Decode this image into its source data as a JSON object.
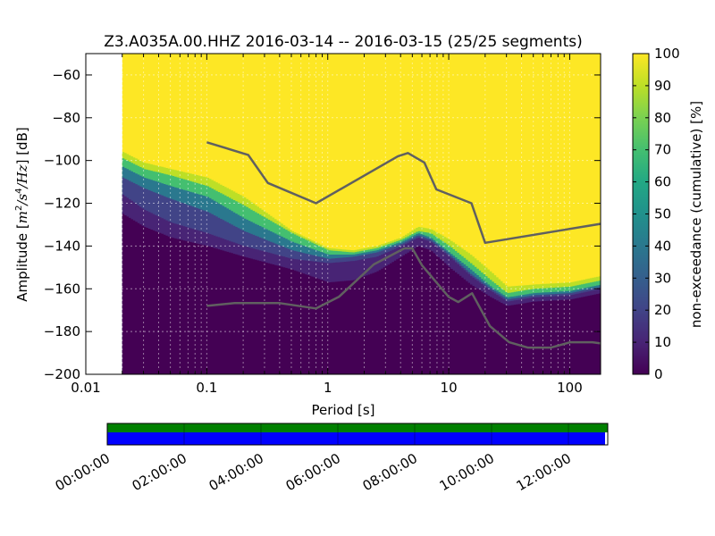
{
  "chart_data": {
    "type": "heatmap",
    "title": "Z3.A035A.00.HHZ   2016-03-14 -- 2016-03-15  (25/25 segments)",
    "xlabel": "Period [s]",
    "ylabel": "Amplitude [m²/s⁴/Hz] [dB]",
    "xscale": "log",
    "xlim": [
      0.01,
      180
    ],
    "ylim": [
      -200,
      -50
    ],
    "x_ticks": [
      0.01,
      0.1,
      1,
      10,
      100
    ],
    "x_tick_labels": [
      "0.01",
      "0.1",
      "1",
      "10",
      "100"
    ],
    "y_ticks": [
      -60,
      -80,
      -100,
      -120,
      -140,
      -160,
      -180,
      -200
    ],
    "y_tick_labels": [
      "−60",
      "−80",
      "−100",
      "−120",
      "−140",
      "−160",
      "−180",
      "−200"
    ],
    "grid": true,
    "colorbar": {
      "label": "non-exceedance (cumulative) [%]",
      "ticks": [
        0,
        10,
        20,
        30,
        40,
        50,
        60,
        70,
        80,
        90,
        100
      ],
      "tick_labels": [
        "0",
        "10",
        "20",
        "30",
        "40",
        "50",
        "60",
        "70",
        "80",
        "90",
        "100"
      ],
      "colormap": "viridis"
    },
    "data_start_period": 0.02,
    "noise_models": [
      {
        "name": "high-noise-model",
        "x": [
          0.1,
          0.22,
          0.32,
          0.8,
          3.8,
          4.6,
          6.3,
          7.9,
          15.4,
          20,
          354.8
        ],
        "y": [
          -91.5,
          -97.4,
          -110.5,
          -120,
          -98,
          -96.5,
          -101,
          -113.5,
          -120,
          -138.5,
          -126.9
        ]
      },
      {
        "name": "low-noise-model",
        "x": [
          0.1,
          0.17,
          0.4,
          0.8,
          1.24,
          2.4,
          4.3,
          5,
          6,
          10,
          12,
          15.6,
          21.9,
          31.6,
          45,
          70,
          101,
          154,
          328
        ],
        "y": [
          -168,
          -166.7,
          -166.7,
          -169.2,
          -163.7,
          -148.6,
          -141.1,
          -141.1,
          -149,
          -163.8,
          -166.2,
          -162.1,
          -177.5,
          -185,
          -187.5,
          -187.5,
          -185,
          -185,
          -187.5
        ]
      }
    ],
    "cumulative_percentiles": [
      {
        "p": 0,
        "x": [
          0.02,
          0.03,
          0.05,
          0.1,
          0.2,
          0.5,
          1,
          1.6,
          2.5,
          4,
          5.5,
          7,
          10,
          15,
          22,
          30,
          50,
          100,
          180
        ],
        "y": [
          -125,
          -131,
          -136,
          -140,
          -145,
          -151,
          -157,
          -156,
          -152,
          -145,
          -140,
          -142,
          -150,
          -158,
          -164,
          -168,
          -166,
          -165,
          -162
        ]
      },
      {
        "p": 10,
        "x": [
          0.02,
          0.03,
          0.05,
          0.1,
          0.2,
          0.5,
          1,
          1.6,
          2.5,
          4,
          5.5,
          7,
          10,
          15,
          22,
          30,
          50,
          100,
          180
        ],
        "y": [
          -116,
          -123,
          -129,
          -134,
          -140,
          -146,
          -148,
          -147,
          -145,
          -140,
          -136,
          -138,
          -145,
          -154,
          -161,
          -166,
          -164,
          -163,
          -160
        ]
      },
      {
        "p": 20,
        "x": [
          0.02,
          0.03,
          0.05,
          0.1,
          0.2,
          0.5,
          1,
          1.6,
          2.5,
          4,
          5.5,
          7,
          10,
          15,
          22,
          30,
          50,
          100,
          180
        ],
        "y": [
          -108,
          -113,
          -118,
          -124,
          -133,
          -142,
          -146,
          -145,
          -143,
          -139,
          -135,
          -137,
          -144,
          -153,
          -160,
          -165,
          -163,
          -162,
          -159
        ]
      },
      {
        "p": 40,
        "x": [
          0.02,
          0.03,
          0.05,
          0.1,
          0.2,
          0.5,
          1,
          1.6,
          2.5,
          4,
          5.5,
          7,
          10,
          15,
          22,
          30,
          50,
          100,
          180
        ],
        "y": [
          -103,
          -108,
          -112,
          -117,
          -127,
          -138,
          -144,
          -144,
          -142,
          -138,
          -134,
          -136,
          -143,
          -151,
          -159,
          -164,
          -162,
          -161,
          -158
        ]
      },
      {
        "p": 70,
        "x": [
          0.02,
          0.03,
          0.05,
          0.1,
          0.2,
          0.5,
          1,
          1.6,
          2.5,
          4,
          5.5,
          7,
          10,
          15,
          22,
          30,
          50,
          100,
          180
        ],
        "y": [
          -99,
          -104,
          -107,
          -112,
          -121,
          -134,
          -142,
          -143,
          -141,
          -137,
          -133,
          -134,
          -140,
          -148,
          -156,
          -162,
          -160,
          -159,
          -156
        ]
      },
      {
        "p": 90,
        "x": [
          0.02,
          0.03,
          0.05,
          0.1,
          0.2,
          0.5,
          1,
          1.6,
          2.5,
          4,
          5.5,
          7,
          10,
          15,
          22,
          30,
          50,
          100,
          180
        ],
        "y": [
          -96,
          -101,
          -104,
          -108,
          -117,
          -133,
          -141,
          -142,
          -140,
          -136,
          -131,
          -132,
          -137,
          -144,
          -152,
          -159,
          -158,
          -157,
          -154
        ]
      }
    ],
    "timeline": {
      "tick_labels": [
        "00:00:00",
        "02:00:00",
        "04:00:00",
        "06:00:00",
        "08:00:00",
        "10:00:00",
        "12:00:00"
      ],
      "bars": [
        {
          "name": "data-coverage",
          "color": "#0000ff"
        },
        {
          "name": "psd-segments",
          "color": "#008000"
        }
      ]
    }
  }
}
